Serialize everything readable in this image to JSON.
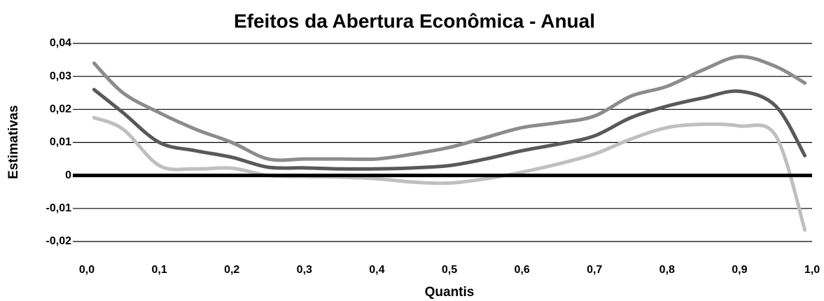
{
  "chart_data": {
    "type": "line",
    "title": "Efeitos da Abertura Econômica - Anual",
    "x_label": "Quantis",
    "y_label": "Estimativas",
    "x": [
      0.01,
      0.05,
      0.1,
      0.15,
      0.2,
      0.25,
      0.3,
      0.35,
      0.4,
      0.45,
      0.5,
      0.55,
      0.6,
      0.65,
      0.7,
      0.75,
      0.8,
      0.85,
      0.9,
      0.95,
      0.99
    ],
    "series": [
      {
        "color": "#8c8c8c",
        "values": [
          0.034,
          0.025,
          0.019,
          0.014,
          0.01,
          0.005,
          0.005,
          0.005,
          0.005,
          0.0065,
          0.0085,
          0.0115,
          0.0145,
          0.016,
          0.018,
          0.024,
          0.027,
          0.032,
          0.036,
          0.033,
          0.028
        ]
      },
      {
        "color": "#595959",
        "values": [
          0.026,
          0.019,
          0.01,
          0.0075,
          0.0055,
          0.0025,
          0.0023,
          0.002,
          0.002,
          0.0023,
          0.003,
          0.005,
          0.0075,
          0.0095,
          0.012,
          0.0175,
          0.021,
          0.0235,
          0.0255,
          0.021,
          0.006
        ]
      },
      {
        "color": "#bfbfbf",
        "values": [
          0.0175,
          0.014,
          0.003,
          0.002,
          0.0022,
          0,
          -0.0003,
          -0.0005,
          -0.001,
          -0.002,
          -0.0023,
          -0.001,
          0.001,
          0.0035,
          0.0065,
          0.011,
          0.0145,
          0.0155,
          0.015,
          0.012,
          -0.0165
        ]
      }
    ],
    "xlim": [
      0,
      1
    ],
    "xticks": [
      {
        "value": 0,
        "label": "0,0"
      },
      {
        "value": 0.1,
        "label": "0,1"
      },
      {
        "value": 0.2,
        "label": "0,2"
      },
      {
        "value": 0.3,
        "label": "0,3"
      },
      {
        "value": 0.4,
        "label": "0,4"
      },
      {
        "value": 0.5,
        "label": "0,5"
      },
      {
        "value": 0.6,
        "label": "0,6"
      },
      {
        "value": 0.7,
        "label": "0,7"
      },
      {
        "value": 0.8,
        "label": "0,8"
      },
      {
        "value": 0.9,
        "label": "0,9"
      },
      {
        "value": 1,
        "label": "1,0"
      }
    ],
    "ylim": [
      -0.02,
      0.04
    ],
    "yticks": [
      {
        "value": -0.02,
        "label": "-0,02"
      },
      {
        "value": -0.01,
        "label": "-0,01"
      },
      0,
      {
        "value": 0.01,
        "label": "0,01"
      },
      {
        "value": 0.02,
        "label": "0,02"
      },
      {
        "value": 0.03,
        "label": "0,03"
      },
      {
        "value": 0.04,
        "label": "0,04"
      }
    ],
    "grid": true,
    "zero_line": true
  }
}
